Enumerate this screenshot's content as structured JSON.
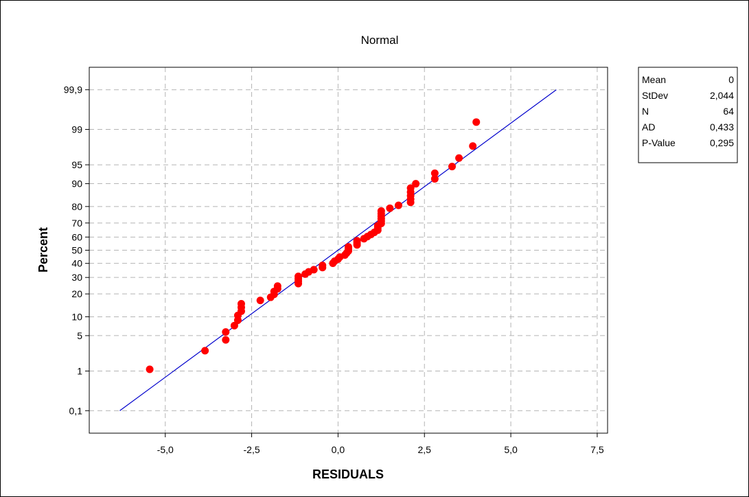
{
  "chart_data": {
    "type": "scatter",
    "subtype": "normal probability plot",
    "title": "Normal",
    "xlabel": "RESIDUALS",
    "ylabel": "Percent",
    "xlim": [
      -7.2,
      7.8
    ],
    "y_scale": "normal-probability",
    "ylim": [
      0.1,
      99.9
    ],
    "x_ticks": [
      -5.0,
      -2.5,
      0.0,
      2.5,
      5.0,
      7.5
    ],
    "x_tick_labels": [
      "-5,0",
      "-2,5",
      "0,0",
      "2,5",
      "5,0",
      "7,5"
    ],
    "y_ticks": [
      0.1,
      1,
      5,
      10,
      20,
      30,
      40,
      50,
      60,
      70,
      80,
      90,
      95,
      99,
      99.9
    ],
    "y_tick_labels": [
      "0,1",
      "1",
      "5",
      "10",
      "20",
      "30",
      "40",
      "50",
      "60",
      "70",
      "80",
      "90",
      "95",
      "99",
      "99,9"
    ],
    "grid": true,
    "fit_line": {
      "mean": 0,
      "stdev": 2.044,
      "color": "#0000cc"
    },
    "point_color": "#ff0000",
    "points": [
      {
        "x": -5.45,
        "y": 1.09
      },
      {
        "x": -3.85,
        "y": 2.65
      },
      {
        "x": -3.25,
        "y": 4.21
      },
      {
        "x": -3.25,
        "y": 5.77
      },
      {
        "x": -3.0,
        "y": 7.33
      },
      {
        "x": -2.9,
        "y": 8.89
      },
      {
        "x": -2.9,
        "y": 10.45
      },
      {
        "x": -2.8,
        "y": 12.01
      },
      {
        "x": -2.8,
        "y": 13.57
      },
      {
        "x": -2.8,
        "y": 15.12
      },
      {
        "x": -2.25,
        "y": 16.68
      },
      {
        "x": -1.95,
        "y": 18.24
      },
      {
        "x": -1.85,
        "y": 19.8
      },
      {
        "x": -1.85,
        "y": 21.36
      },
      {
        "x": -1.75,
        "y": 22.92
      },
      {
        "x": -1.75,
        "y": 24.48
      },
      {
        "x": -1.15,
        "y": 26.04
      },
      {
        "x": -1.15,
        "y": 27.6
      },
      {
        "x": -1.15,
        "y": 29.16
      },
      {
        "x": -1.15,
        "y": 30.72
      },
      {
        "x": -0.95,
        "y": 32.28
      },
      {
        "x": -0.85,
        "y": 33.83
      },
      {
        "x": -0.7,
        "y": 35.39
      },
      {
        "x": -0.45,
        "y": 36.95
      },
      {
        "x": -0.45,
        "y": 38.51
      },
      {
        "x": -0.15,
        "y": 40.07
      },
      {
        "x": -0.1,
        "y": 41.63
      },
      {
        "x": 0.0,
        "y": 43.19
      },
      {
        "x": 0.05,
        "y": 44.75
      },
      {
        "x": 0.2,
        "y": 46.31
      },
      {
        "x": 0.25,
        "y": 47.87
      },
      {
        "x": 0.3,
        "y": 49.43
      },
      {
        "x": 0.3,
        "y": 50.99
      },
      {
        "x": 0.3,
        "y": 52.55
      },
      {
        "x": 0.55,
        "y": 54.1
      },
      {
        "x": 0.55,
        "y": 55.66
      },
      {
        "x": 0.55,
        "y": 57.22
      },
      {
        "x": 0.75,
        "y": 58.78
      },
      {
        "x": 0.85,
        "y": 60.34
      },
      {
        "x": 0.95,
        "y": 61.9
      },
      {
        "x": 1.05,
        "y": 63.46
      },
      {
        "x": 1.15,
        "y": 65.02
      },
      {
        "x": 1.15,
        "y": 66.58
      },
      {
        "x": 1.15,
        "y": 68.14
      },
      {
        "x": 1.25,
        "y": 69.7
      },
      {
        "x": 1.25,
        "y": 71.26
      },
      {
        "x": 1.25,
        "y": 72.81
      },
      {
        "x": 1.25,
        "y": 74.37
      },
      {
        "x": 1.25,
        "y": 75.93
      },
      {
        "x": 1.25,
        "y": 77.49
      },
      {
        "x": 1.5,
        "y": 79.05
      },
      {
        "x": 1.75,
        "y": 80.61
      },
      {
        "x": 2.1,
        "y": 82.17
      },
      {
        "x": 2.1,
        "y": 83.73
      },
      {
        "x": 2.1,
        "y": 85.29
      },
      {
        "x": 2.1,
        "y": 86.85
      },
      {
        "x": 2.1,
        "y": 88.41
      },
      {
        "x": 2.25,
        "y": 89.97
      },
      {
        "x": 2.8,
        "y": 91.53
      },
      {
        "x": 2.8,
        "y": 93.09
      },
      {
        "x": 3.3,
        "y": 94.64
      },
      {
        "x": 3.5,
        "y": 96.2
      },
      {
        "x": 3.9,
        "y": 97.76
      },
      {
        "x": 4.0,
        "y": 99.32
      }
    ]
  },
  "stats_box": {
    "rows": [
      {
        "label": "Mean",
        "value": "0"
      },
      {
        "label": "StDev",
        "value": "2,044"
      },
      {
        "label": "N",
        "value": "64"
      },
      {
        "label": "AD",
        "value": "0,433"
      },
      {
        "label": "P-Value",
        "value": "0,295"
      }
    ]
  }
}
